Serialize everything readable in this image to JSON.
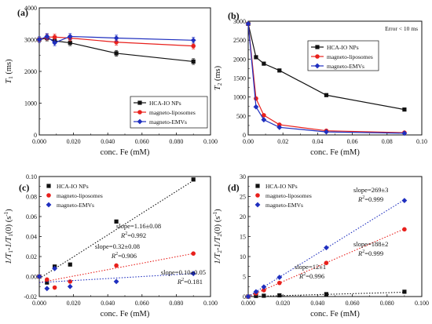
{
  "chart_data": [
    {
      "type": "line",
      "panel_label": "(a)",
      "ylabel_main": "T",
      "ylabel_sub": "1",
      "ylabel_unit": " (ms)",
      "xlabel": "conc. Fe  (mM)",
      "xlim": [
        0,
        0.1
      ],
      "ylim": [
        0,
        4000
      ],
      "xticks": [
        "0.000",
        "0.020",
        "0.040",
        "0.060",
        "0.080",
        "0.100"
      ],
      "yticks": [
        "0",
        "1000",
        "2000",
        "3000",
        "4000"
      ],
      "legend_position": "bottom-right",
      "series": [
        {
          "name": "HCA-IO NPs",
          "color": "#111111",
          "marker": "square",
          "line": "solid",
          "x": [
            0,
            0.0045,
            0.009,
            0.018,
            0.045,
            0.09
          ],
          "y": [
            3000,
            3050,
            2960,
            2900,
            2570,
            2310
          ]
        },
        {
          "name": "magneto-liposomes",
          "color": "#e8201c",
          "marker": "circle",
          "line": "solid",
          "x": [
            0,
            0.0045,
            0.009,
            0.018,
            0.045,
            0.09
          ],
          "y": [
            3000,
            3080,
            3080,
            3050,
            2920,
            2800
          ]
        },
        {
          "name": "magneto-EMVs",
          "color": "#1f2fbf",
          "marker": "diamond",
          "line": "solid",
          "x": [
            0,
            0.0045,
            0.009,
            0.018,
            0.045,
            0.09
          ],
          "y": [
            3000,
            3100,
            2900,
            3100,
            3050,
            2980
          ]
        }
      ]
    },
    {
      "type": "line",
      "panel_label": "(b)",
      "ylabel_main": "T",
      "ylabel_sub": "2",
      "ylabel_unit": " (ms)",
      "xlabel": "conc. Fe  (mM)",
      "xlim": [
        0,
        0.1
      ],
      "ylim": [
        0,
        3000
      ],
      "xticks": [
        "0.00",
        "0.02",
        "0.04",
        "0.06",
        "0.08",
        "0.10"
      ],
      "yticks": [
        "0",
        "500",
        "1000",
        "1500",
        "2000",
        "2500",
        "3000"
      ],
      "note": "Error < 10 ms",
      "legend_position": "top-right",
      "series": [
        {
          "name": "HCA-IO NPs",
          "color": "#111111",
          "marker": "square",
          "line": "solid",
          "x": [
            0,
            0.0045,
            0.009,
            0.018,
            0.045,
            0.09
          ],
          "y": [
            2930,
            2050,
            1880,
            1700,
            1050,
            670
          ]
        },
        {
          "name": "magneto-liposomes",
          "color": "#e8201c",
          "marker": "circle",
          "line": "solid",
          "x": [
            0,
            0.0045,
            0.009,
            0.018,
            0.045,
            0.09
          ],
          "y": [
            2930,
            960,
            520,
            270,
            110,
            60
          ]
        },
        {
          "name": "magneto-EMVs",
          "color": "#1f2fbf",
          "marker": "diamond",
          "line": "solid",
          "x": [
            0,
            0.0045,
            0.009,
            0.018,
            0.045,
            0.09
          ],
          "y": [
            2930,
            740,
            400,
            200,
            80,
            45
          ]
        }
      ]
    },
    {
      "type": "scatter",
      "panel_label": "(c)",
      "ylabel_main": "1/T",
      "ylabel_sub": "1",
      "ylabel_mid": "-1/T",
      "ylabel_sub2": "1",
      "ylabel_end": "(0)",
      "ylabel_unit": "(s",
      "ylabel_unit_sup": "-1",
      "ylabel_unit_end": ")",
      "xlabel": "conc. Fe  (mM)",
      "xlim": [
        0,
        0.1
      ],
      "ylim": [
        -0.02,
        0.1
      ],
      "xticks": [
        "0.000",
        "0.020",
        "0.040",
        "0.060",
        "0.080",
        "0.100"
      ],
      "yticks": [
        "-0.02",
        "0.00",
        "0.02",
        "0.04",
        "0.06",
        "0.08",
        "0.10"
      ],
      "legend_position": "top-left",
      "series": [
        {
          "name": "HCA-IO NPs",
          "color": "#111111",
          "marker": "square",
          "fit": "dotted",
          "x": [
            0,
            0.0045,
            0.009,
            0.018,
            0.045,
            0.09
          ],
          "y": [
            0,
            -0.006,
            0.01,
            0.012,
            0.055,
            0.097
          ],
          "fit_line": {
            "x": [
              0,
              0.09
            ],
            "y": [
              -0.002,
              0.096
            ]
          },
          "slope_text": "slope=1.16±0.08",
          "r2_prefix": "R",
          "r2_sup": "2",
          "r2_value": "=0.992"
        },
        {
          "name": "magneto-liposomes",
          "color": "#e8201c",
          "marker": "circle",
          "fit": "dotted",
          "x": [
            0,
            0.0045,
            0.009,
            0.018,
            0.045,
            0.09
          ],
          "y": [
            0,
            -0.003,
            -0.011,
            -0.005,
            0.011,
            0.023
          ],
          "fit_line": {
            "x": [
              0,
              0.09
            ],
            "y": [
              -0.006,
              0.023
            ]
          },
          "slope_text": "slope=0.32±0.08",
          "r2_prefix": "R",
          "r2_sup": "2",
          "r2_value": "=0.906"
        },
        {
          "name": "magneto-EMVs",
          "color": "#1f2fbf",
          "marker": "diamond",
          "fit": "dotted",
          "x": [
            0,
            0.0045,
            0.009,
            0.018,
            0.045,
            0.09
          ],
          "y": [
            0,
            -0.012,
            0.008,
            -0.01,
            -0.005,
            0.003
          ],
          "fit_line": {
            "x": [
              0,
              0.09
            ],
            "y": [
              -0.006,
              0.003
            ]
          },
          "slope_text": "slope=0.10±0.05",
          "r2_prefix": "R",
          "r2_sup": "2",
          "r2_value": "=0.181"
        }
      ]
    },
    {
      "type": "scatter",
      "panel_label": "(d)",
      "ylabel_main": "1/T",
      "ylabel_sub": "2",
      "ylabel_mid": "-1/T",
      "ylabel_sub2": "2",
      "ylabel_end": "(0)",
      "ylabel_unit": "(s",
      "ylabel_unit_sup": "-1",
      "ylabel_unit_end": ")",
      "xlabel": "conc. Fe  (mM)",
      "xlim": [
        0,
        0.1
      ],
      "ylim": [
        0,
        30
      ],
      "xticks": [
        "0.000",
        "0.020",
        "0.040",
        "0.060",
        "0.080",
        "0.100"
      ],
      "yticks": [
        "0",
        "5",
        "10",
        "15",
        "20",
        "25",
        "30"
      ],
      "legend_position": "top-left",
      "series": [
        {
          "name": "HCA-IO NPs",
          "color": "#111111",
          "marker": "square",
          "fit": "dotted",
          "x": [
            0,
            0.0045,
            0.009,
            0.018,
            0.045,
            0.09
          ],
          "y": [
            0,
            0.15,
            0.2,
            0.3,
            0.6,
            1.2
          ],
          "fit_line": {
            "x": [
              0,
              0.09
            ],
            "y": [
              0,
              1.08
            ]
          },
          "slope_text": "slope=12±1",
          "r2_prefix": "R",
          "r2_sup": "2",
          "r2_value": "=0.996"
        },
        {
          "name": "magneto-liposomes",
          "color": "#e8201c",
          "marker": "circle",
          "fit": "dotted",
          "x": [
            0,
            0.0045,
            0.009,
            0.018,
            0.045,
            0.09
          ],
          "y": [
            0,
            0.8,
            1.6,
            3.4,
            8.4,
            16.8
          ],
          "fit_line": {
            "x": [
              0,
              0.09
            ],
            "y": [
              0,
              16.9
            ]
          },
          "slope_text": "slope=188±2",
          "r2_prefix": "R",
          "r2_sup": "2",
          "r2_value": "=0.999"
        },
        {
          "name": "magneto-EMVs",
          "color": "#1f2fbf",
          "marker": "diamond",
          "fit": "dotted",
          "x": [
            0,
            0.0045,
            0.009,
            0.018,
            0.045,
            0.09
          ],
          "y": [
            0,
            1.2,
            2.4,
            4.8,
            12.2,
            24
          ],
          "fit_line": {
            "x": [
              0,
              0.09
            ],
            "y": [
              0,
              24.2
            ]
          },
          "slope_text": "slope=269±3",
          "r2_prefix": "R",
          "r2_sup": "2",
          "r2_value": "=0.999"
        }
      ]
    }
  ]
}
